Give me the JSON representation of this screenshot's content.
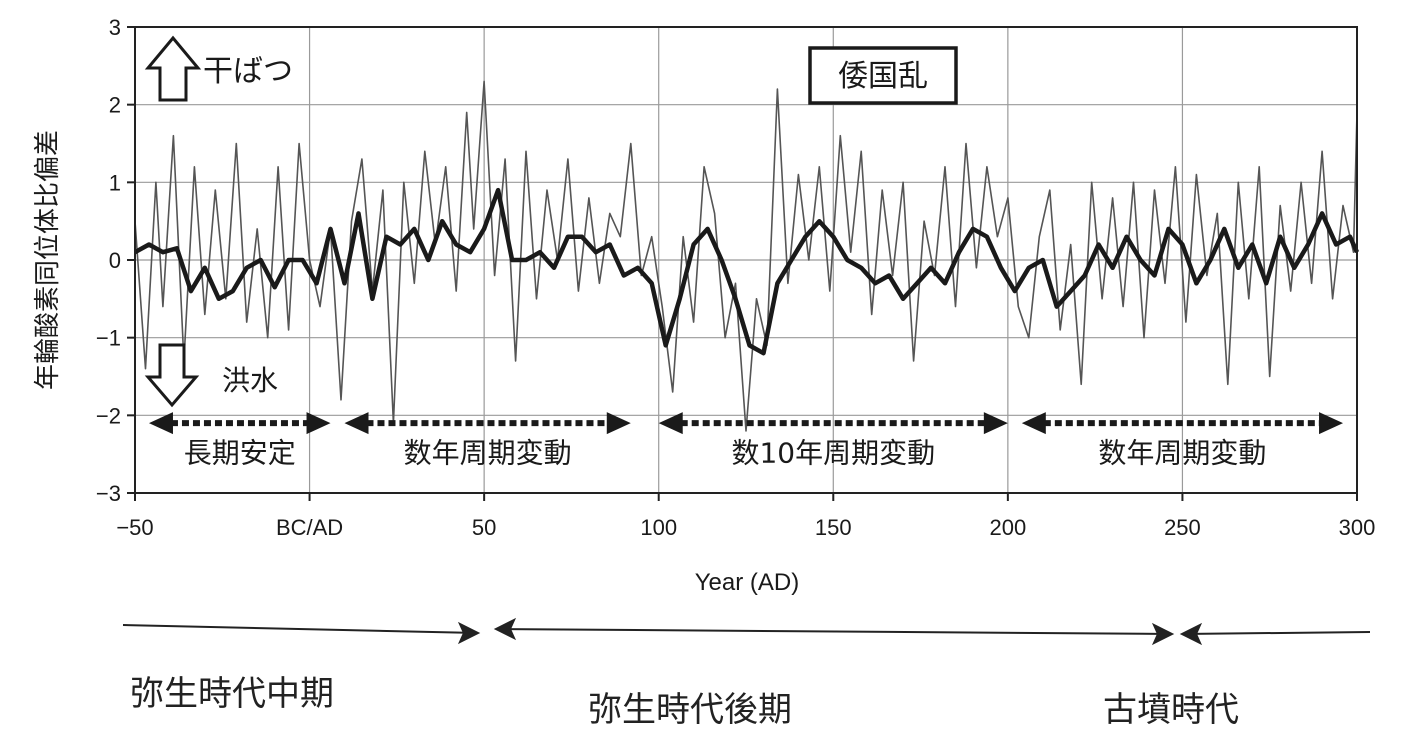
{
  "chart_data": {
    "type": "line",
    "xlabel": "Year (AD)",
    "ylabel": "年輪酸素同位体比偏差",
    "xlim": [
      -50,
      300
    ],
    "ylim": [
      -3,
      3
    ],
    "x_ticks": [
      -50,
      0,
      50,
      100,
      150,
      200,
      250,
      300
    ],
    "x_tick_labels": [
      "−50",
      "BC/AD",
      "50",
      "100",
      "150",
      "200",
      "250",
      "300"
    ],
    "y_ticks": [
      -3,
      -2,
      -1,
      0,
      1,
      2,
      3
    ],
    "y_tick_labels": [
      "−3",
      "−2",
      "−1",
      "0",
      "1",
      "2",
      "3"
    ],
    "grid": true,
    "series": [
      {
        "style": "thin-annual",
        "x": [
          -50,
          -47,
          -44,
          -42,
          -39,
          -36,
          -33,
          -30,
          -27,
          -24,
          -21,
          -18,
          -15,
          -12,
          -9,
          -6,
          -3,
          0,
          3,
          6,
          9,
          12,
          15,
          18,
          21,
          24,
          27,
          30,
          33,
          36,
          39,
          42,
          45,
          47,
          50,
          53,
          56,
          59,
          62,
          65,
          68,
          71,
          74,
          77,
          80,
          83,
          86,
          89,
          92,
          95,
          98,
          101,
          104,
          107,
          110,
          113,
          116,
          119,
          122,
          125,
          128,
          131,
          134,
          137,
          140,
          143,
          146,
          149,
          152,
          155,
          158,
          161,
          164,
          167,
          170,
          173,
          176,
          179,
          182,
          185,
          188,
          191,
          194,
          197,
          200,
          203,
          206,
          209,
          212,
          215,
          218,
          221,
          224,
          227,
          230,
          233,
          236,
          239,
          242,
          245,
          248,
          251,
          254,
          257,
          260,
          263,
          266,
          269,
          272,
          275,
          278,
          281,
          284,
          287,
          290,
          293,
          296,
          299,
          300
        ],
        "y": [
          0.5,
          -1.4,
          1.0,
          -0.6,
          1.6,
          -1.3,
          1.2,
          -0.7,
          0.9,
          -0.5,
          1.5,
          -0.8,
          0.4,
          -1.0,
          1.2,
          -0.9,
          1.5,
          0.0,
          -0.6,
          0.4,
          -1.8,
          0.5,
          1.3,
          -0.4,
          0.9,
          -2.1,
          1.0,
          -0.3,
          1.4,
          0.2,
          1.2,
          -0.4,
          1.9,
          0.4,
          2.3,
          -0.2,
          1.3,
          -1.3,
          1.4,
          -0.5,
          0.9,
          0.0,
          1.3,
          -0.4,
          0.8,
          -0.3,
          0.6,
          0.3,
          1.5,
          -0.2,
          0.3,
          -0.6,
          -1.7,
          0.3,
          -0.8,
          1.2,
          0.6,
          -1.0,
          -0.3,
          -2.2,
          -0.5,
          -1.1,
          2.2,
          -0.3,
          1.1,
          0.0,
          1.2,
          -0.4,
          1.6,
          0.1,
          1.4,
          -0.7,
          0.9,
          -0.2,
          1.0,
          -1.3,
          0.5,
          -0.2,
          1.2,
          -0.6,
          1.5,
          -0.1,
          1.2,
          0.3,
          0.8,
          -0.6,
          -1.0,
          0.3,
          0.9,
          -0.9,
          0.2,
          -1.6,
          1.0,
          -0.5,
          0.8,
          -0.6,
          1.0,
          -1.0,
          0.9,
          -0.3,
          1.2,
          -0.8,
          1.1,
          -0.2,
          0.6,
          -1.6,
          1.0,
          -0.5,
          1.2,
          -1.5,
          0.7,
          -0.4,
          1.0,
          -0.3,
          1.4,
          -0.5,
          0.7,
          0.1,
          1.9
        ]
      },
      {
        "style": "thick-smoothed",
        "x": [
          -50,
          -46,
          -42,
          -38,
          -34,
          -30,
          -26,
          -22,
          -18,
          -14,
          -10,
          -6,
          -2,
          2,
          6,
          10,
          14,
          18,
          22,
          26,
          30,
          34,
          38,
          42,
          46,
          50,
          54,
          58,
          62,
          66,
          70,
          74,
          78,
          82,
          86,
          90,
          94,
          98,
          102,
          106,
          110,
          114,
          118,
          122,
          126,
          130,
          134,
          138,
          142,
          146,
          150,
          154,
          158,
          162,
          166,
          170,
          174,
          178,
          182,
          186,
          190,
          194,
          198,
          202,
          206,
          210,
          214,
          218,
          222,
          226,
          230,
          234,
          238,
          242,
          246,
          250,
          254,
          258,
          262,
          266,
          270,
          274,
          278,
          282,
          286,
          290,
          294,
          298,
          300
        ],
        "y": [
          0.1,
          0.2,
          0.1,
          0.15,
          -0.4,
          -0.1,
          -0.5,
          -0.4,
          -0.1,
          0.0,
          -0.35,
          0.0,
          0.0,
          -0.3,
          0.4,
          -0.3,
          0.6,
          -0.5,
          0.3,
          0.2,
          0.4,
          0.0,
          0.5,
          0.2,
          0.1,
          0.4,
          0.9,
          0.0,
          0.0,
          0.1,
          -0.1,
          0.3,
          0.3,
          0.1,
          0.2,
          -0.2,
          -0.1,
          -0.3,
          -1.1,
          -0.5,
          0.2,
          0.4,
          0.0,
          -0.5,
          -1.1,
          -1.2,
          -0.3,
          0.0,
          0.3,
          0.5,
          0.3,
          0.0,
          -0.1,
          -0.3,
          -0.2,
          -0.5,
          -0.3,
          -0.1,
          -0.3,
          0.1,
          0.4,
          0.3,
          -0.1,
          -0.4,
          -0.1,
          0.0,
          -0.6,
          -0.4,
          -0.2,
          0.2,
          -0.1,
          0.3,
          0.0,
          -0.2,
          0.4,
          0.2,
          -0.3,
          0.0,
          0.4,
          -0.1,
          0.2,
          -0.3,
          0.3,
          -0.1,
          0.2,
          0.6,
          0.2,
          0.3,
          0.1
        ]
      }
    ],
    "annotations": {
      "drought": "干ばつ",
      "flood": "洪水",
      "event_box": "倭国乱"
    },
    "periods": [
      {
        "label": "長期安定",
        "x_start": -46,
        "x_end": 6
      },
      {
        "label": "数年周期変動",
        "x_start": 10,
        "x_end": 92
      },
      {
        "label": "数10年周期変動",
        "x_start": 100,
        "x_end": 200
      },
      {
        "label": "数年周期変動",
        "x_start": 204,
        "x_end": 296
      }
    ]
  },
  "eras": [
    {
      "label": "弥生時代中期"
    },
    {
      "label": "弥生時代後期"
    },
    {
      "label": "古墳時代"
    }
  ]
}
